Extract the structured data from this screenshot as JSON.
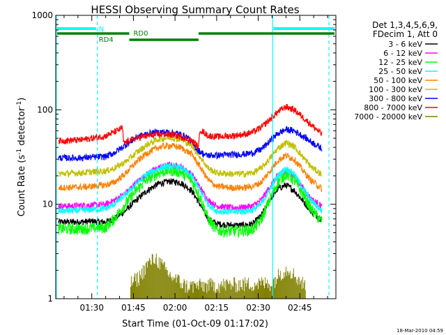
{
  "chart_data": {
    "type": "line",
    "title": "HESSI Observing Summary Count Rates",
    "xlabel": "Start Time (01-Oct-09 01:17:02)",
    "ylabel_main": "Count Rate (s",
    "ylabel_sup1": "-1",
    "ylabel_mid": " detector",
    "ylabel_sup2": "-1",
    "ylabel_end": ")",
    "timestamp": "18-Mar-2010 04:59",
    "xlim_minutes": [
      77,
      178
    ],
    "x_ticks": [
      {
        "min": 90,
        "label": "01:30"
      },
      {
        "min": 105,
        "label": "01:45"
      },
      {
        "min": 120,
        "label": "02:00"
      },
      {
        "min": 135,
        "label": "02:15"
      },
      {
        "min": 150,
        "label": "02:30"
      },
      {
        "min": 165,
        "label": "02:45"
      }
    ],
    "y_scale": "log",
    "ylim": [
      1,
      1000
    ],
    "y_ticks": [
      {
        "v": 1,
        "label": "1"
      },
      {
        "v": 10,
        "label": "10"
      },
      {
        "v": 100,
        "label": "100"
      },
      {
        "v": 1000,
        "label": "1000"
      }
    ],
    "legend": {
      "position": "right",
      "header1": "Det 1,3,4,5,6,9,",
      "header2": "FDecim 1, Att 0"
    },
    "series": [
      {
        "name": "3 - 6 keV",
        "color": "#000000",
        "points": [
          [
            78,
            6.5
          ],
          [
            86,
            6.5
          ],
          [
            90,
            6.6
          ],
          [
            95,
            6.5
          ],
          [
            98,
            7
          ],
          [
            102,
            8.5
          ],
          [
            106,
            11
          ],
          [
            110,
            14
          ],
          [
            114,
            16.5
          ],
          [
            118,
            17.5
          ],
          [
            122,
            17
          ],
          [
            126,
            14
          ],
          [
            129,
            10
          ],
          [
            132,
            7
          ],
          [
            135,
            6.2
          ],
          [
            140,
            6
          ],
          [
            145,
            6
          ],
          [
            148,
            6.2
          ],
          [
            151,
            7.5
          ],
          [
            154,
            11
          ],
          [
            157,
            14.5
          ],
          [
            160,
            16
          ],
          [
            163,
            14
          ],
          [
            166,
            11
          ],
          [
            169,
            8.5
          ],
          [
            173,
            6.8
          ]
        ]
      },
      {
        "name": "6 - 12 keV",
        "color": "#ff00ff",
        "points": [
          [
            78,
            9.5
          ],
          [
            86,
            9.7
          ],
          [
            90,
            9.8
          ],
          [
            95,
            10
          ],
          [
            98,
            11
          ],
          [
            102,
            13
          ],
          [
            106,
            17
          ],
          [
            110,
            21
          ],
          [
            114,
            24.5
          ],
          [
            118,
            26
          ],
          [
            122,
            25
          ],
          [
            126,
            21
          ],
          [
            129,
            15
          ],
          [
            132,
            11
          ],
          [
            135,
            9.6
          ],
          [
            140,
            9.2
          ],
          [
            145,
            9.3
          ],
          [
            148,
            9.6
          ],
          [
            151,
            11
          ],
          [
            154,
            15
          ],
          [
            157,
            20
          ],
          [
            160,
            23
          ],
          [
            163,
            20
          ],
          [
            166,
            15
          ],
          [
            169,
            11.5
          ],
          [
            173,
            9.5
          ]
        ]
      },
      {
        "name": "12 - 25 keV",
        "color": "#00ff00",
        "points": [
          [
            78,
            5.5
          ],
          [
            86,
            5.5
          ],
          [
            90,
            5.6
          ],
          [
            95,
            5.7
          ],
          [
            98,
            7
          ],
          [
            102,
            10
          ],
          [
            106,
            14
          ],
          [
            110,
            18.5
          ],
          [
            114,
            21.5
          ],
          [
            118,
            23
          ],
          [
            122,
            22
          ],
          [
            126,
            18
          ],
          [
            129,
            12
          ],
          [
            132,
            7
          ],
          [
            135,
            5.3
          ],
          [
            140,
            5.2
          ],
          [
            145,
            5.3
          ],
          [
            148,
            5.4
          ],
          [
            151,
            6.8
          ],
          [
            154,
            11
          ],
          [
            157,
            17
          ],
          [
            160,
            21
          ],
          [
            163,
            18
          ],
          [
            166,
            13
          ],
          [
            169,
            9
          ],
          [
            173,
            6.5
          ]
        ]
      },
      {
        "name": "25 - 50 keV",
        "color": "#00ffff",
        "points": [
          [
            78,
            8.5
          ],
          [
            86,
            8.6
          ],
          [
            90,
            8.8
          ],
          [
            95,
            9
          ],
          [
            98,
            10
          ],
          [
            102,
            12.5
          ],
          [
            106,
            16.5
          ],
          [
            110,
            21
          ],
          [
            114,
            24
          ],
          [
            118,
            25.5
          ],
          [
            122,
            24.5
          ],
          [
            126,
            20
          ],
          [
            129,
            14
          ],
          [
            132,
            10
          ],
          [
            135,
            8.5
          ],
          [
            140,
            8.3
          ],
          [
            145,
            8.4
          ],
          [
            148,
            8.7
          ],
          [
            151,
            10
          ],
          [
            154,
            14
          ],
          [
            157,
            20
          ],
          [
            160,
            24
          ],
          [
            163,
            21
          ],
          [
            166,
            15
          ],
          [
            169,
            11
          ],
          [
            173,
            8.5
          ]
        ]
      },
      {
        "name": "50 - 100 keV",
        "color": "#ff8000",
        "points": [
          [
            78,
            15
          ],
          [
            86,
            15.2
          ],
          [
            90,
            15.5
          ],
          [
            95,
            16
          ],
          [
            98,
            17
          ],
          [
            102,
            21
          ],
          [
            106,
            28
          ],
          [
            110,
            35
          ],
          [
            114,
            40
          ],
          [
            118,
            42
          ],
          [
            122,
            40
          ],
          [
            126,
            34
          ],
          [
            129,
            25
          ],
          [
            132,
            18
          ],
          [
            135,
            15.5
          ],
          [
            140,
            15
          ],
          [
            145,
            15
          ],
          [
            148,
            15.5
          ],
          [
            151,
            17
          ],
          [
            154,
            22
          ],
          [
            157,
            29
          ],
          [
            160,
            33
          ],
          [
            163,
            30
          ],
          [
            166,
            23
          ],
          [
            169,
            18
          ],
          [
            173,
            14.5
          ]
        ]
      },
      {
        "name": "100 - 300 keV",
        "color": "#c0c000",
        "points": [
          [
            78,
            21
          ],
          [
            86,
            21.5
          ],
          [
            90,
            22
          ],
          [
            95,
            22.5
          ],
          [
            98,
            24
          ],
          [
            102,
            28
          ],
          [
            106,
            35
          ],
          [
            110,
            43
          ],
          [
            114,
            49
          ],
          [
            118,
            51
          ],
          [
            122,
            49
          ],
          [
            126,
            42
          ],
          [
            129,
            32
          ],
          [
            132,
            24
          ],
          [
            135,
            21.5
          ],
          [
            140,
            21
          ],
          [
            145,
            21
          ],
          [
            148,
            21.5
          ],
          [
            151,
            24
          ],
          [
            154,
            30
          ],
          [
            157,
            39
          ],
          [
            160,
            45
          ],
          [
            163,
            41
          ],
          [
            166,
            32
          ],
          [
            169,
            25
          ],
          [
            173,
            20.5
          ]
        ]
      },
      {
        "name": "300 - 800 keV",
        "color": "#0000ff",
        "points": [
          [
            78,
            31
          ],
          [
            86,
            31
          ],
          [
            90,
            31.5
          ],
          [
            95,
            32
          ],
          [
            98,
            35
          ],
          [
            102,
            42
          ],
          [
            106,
            51
          ],
          [
            110,
            56
          ],
          [
            114,
            58
          ],
          [
            118,
            58
          ],
          [
            122,
            55
          ],
          [
            125,
            50
          ],
          [
            128,
            38
          ],
          [
            131,
            33
          ],
          [
            135,
            33
          ],
          [
            140,
            33.5
          ],
          [
            145,
            34
          ],
          [
            148,
            35
          ],
          [
            151,
            38
          ],
          [
            154,
            46
          ],
          [
            157,
            56
          ],
          [
            160,
            62
          ],
          [
            163,
            60
          ],
          [
            166,
            53
          ],
          [
            169,
            46
          ],
          [
            173,
            39
          ]
        ]
      },
      {
        "name": "800 - 7000 keV",
        "color": "#ff0000",
        "points": [
          [
            78,
            47
          ],
          [
            86,
            48
          ],
          [
            90,
            50
          ],
          [
            95,
            53
          ],
          [
            98,
            58
          ],
          [
            100,
            62
          ],
          [
            101,
            65
          ],
          [
            101.5,
            44
          ],
          [
            104,
            48
          ],
          [
            108,
            52
          ],
          [
            112,
            54
          ],
          [
            116,
            55
          ],
          [
            120,
            54
          ],
          [
            124,
            50
          ],
          [
            127,
            45
          ],
          [
            128.5,
            40
          ],
          [
            129,
            62
          ],
          [
            132,
            53
          ],
          [
            136,
            52
          ],
          [
            140,
            53
          ],
          [
            145,
            55
          ],
          [
            148,
            58
          ],
          [
            151,
            65
          ],
          [
            154,
            78
          ],
          [
            157,
            95
          ],
          [
            160,
            108
          ],
          [
            163,
            100
          ],
          [
            166,
            84
          ],
          [
            169,
            70
          ],
          [
            173,
            55
          ]
        ]
      },
      {
        "name": "7000 - 20000 keV",
        "color": "#808000",
        "points": [
          [
            104,
            1.4
          ],
          [
            107,
            1.6
          ],
          [
            110,
            2.2
          ],
          [
            113,
            2.6
          ],
          [
            115,
            2.2
          ],
          [
            118,
            1.7
          ],
          [
            121,
            1.5
          ],
          [
            124,
            1.3
          ],
          [
            155,
            1.4
          ],
          [
            158,
            1.8
          ],
          [
            161,
            2.0
          ],
          [
            163,
            1.7
          ],
          [
            165,
            1.5
          ],
          [
            167,
            1.3
          ]
        ]
      }
    ],
    "annotations": {
      "v_lines_solid": [
        77.2,
        155.2
      ],
      "v_lines_dashed": [
        92,
        175.5
      ],
      "N_label": "N",
      "RD0_label": "RD0",
      "RD4_label": "RD4",
      "cyan_color": "#00ffff",
      "green_color": "#008000"
    },
    "grid": false
  }
}
